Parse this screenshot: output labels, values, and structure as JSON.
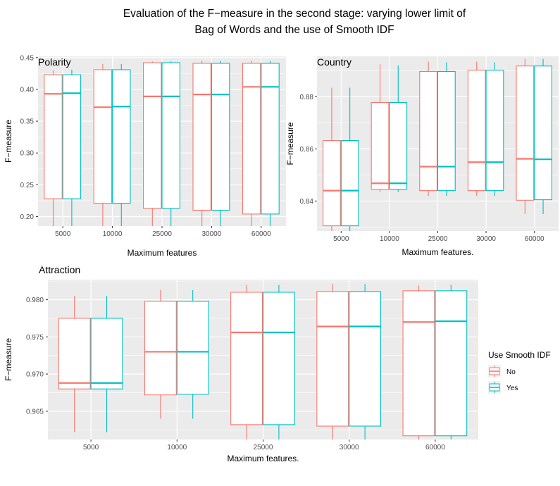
{
  "title_line1": "Evaluation of the F−measure in the second stage: varying lower limit of",
  "title_line2": "Bag of Words and the use of Smooth IDF",
  "colors": {
    "No": "#F8766D",
    "Yes": "#00BFC4",
    "panel_bg": "#EBEBEB",
    "grid": "#FFFFFF"
  },
  "legend": {
    "title": "Use Smooth IDF",
    "entries": [
      "No",
      "Yes"
    ],
    "placement": "right"
  },
  "chart_data": [
    {
      "type": "boxplot",
      "title": "Polarity",
      "xlabel": "Maximum features",
      "ylabel": "F−measure",
      "categories": [
        "5000",
        "10000",
        "25000",
        "30000",
        "60000"
      ],
      "ylim": [
        0.185,
        0.452
      ],
      "yticks": [
        0.2,
        0.25,
        0.3,
        0.35,
        0.4,
        0.45
      ],
      "ytick_labels": [
        "0.20",
        "0.25",
        "0.30",
        "0.35",
        "0.40",
        "0.45"
      ],
      "series": [
        {
          "name": "No",
          "boxes": [
            {
              "min": 0.18,
              "q1": 0.228,
              "median": 0.393,
              "q3": 0.423,
              "max": 0.43
            },
            {
              "min": 0.18,
              "q1": 0.221,
              "median": 0.372,
              "q3": 0.431,
              "max": 0.44
            },
            {
              "min": 0.18,
              "q1": 0.213,
              "median": 0.389,
              "q3": 0.442,
              "max": 0.444
            },
            {
              "min": 0.18,
              "q1": 0.21,
              "median": 0.392,
              "q3": 0.441,
              "max": 0.445
            },
            {
              "min": 0.18,
              "q1": 0.204,
              "median": 0.404,
              "q3": 0.441,
              "max": 0.445
            }
          ]
        },
        {
          "name": "Yes",
          "boxes": [
            {
              "min": 0.18,
              "q1": 0.228,
              "median": 0.394,
              "q3": 0.423,
              "max": 0.431
            },
            {
              "min": 0.18,
              "q1": 0.221,
              "median": 0.373,
              "q3": 0.431,
              "max": 0.44
            },
            {
              "min": 0.18,
              "q1": 0.213,
              "median": 0.389,
              "q3": 0.442,
              "max": 0.444
            },
            {
              "min": 0.18,
              "q1": 0.21,
              "median": 0.392,
              "q3": 0.441,
              "max": 0.445
            },
            {
              "min": 0.18,
              "q1": 0.204,
              "median": 0.404,
              "q3": 0.441,
              "max": 0.445
            }
          ]
        }
      ]
    },
    {
      "type": "boxplot",
      "title": "Country",
      "xlabel": "Maximum features.",
      "ylabel": "F−measure",
      "categories": [
        "5000",
        "10000",
        "25000",
        "30000",
        "60000"
      ],
      "ylim": [
        0.8285,
        0.8955
      ],
      "yticks": [
        0.84,
        0.86,
        0.88
      ],
      "ytick_labels": [
        "0.84",
        "0.86",
        "0.88"
      ],
      "series": [
        {
          "name": "No",
          "boxes": [
            {
              "min": 0.828,
              "q1": 0.8305,
              "median": 0.844,
              "q3": 0.8632,
              "max": 0.8835
            },
            {
              "min": 0.8435,
              "q1": 0.8445,
              "median": 0.8468,
              "q3": 0.8778,
              "max": 0.8925
            },
            {
              "min": 0.842,
              "q1": 0.844,
              "median": 0.8532,
              "q3": 0.8897,
              "max": 0.8935
            },
            {
              "min": 0.842,
              "q1": 0.844,
              "median": 0.8549,
              "q3": 0.8902,
              "max": 0.8935
            },
            {
              "min": 0.835,
              "q1": 0.8403,
              "median": 0.8562,
              "q3": 0.8918,
              "max": 0.8945
            }
          ]
        },
        {
          "name": "Yes",
          "boxes": [
            {
              "min": 0.828,
              "q1": 0.8305,
              "median": 0.844,
              "q3": 0.8632,
              "max": 0.8835
            },
            {
              "min": 0.8435,
              "q1": 0.8445,
              "median": 0.8468,
              "q3": 0.8778,
              "max": 0.892
            },
            {
              "min": 0.842,
              "q1": 0.844,
              "median": 0.8532,
              "q3": 0.8897,
              "max": 0.8932
            },
            {
              "min": 0.842,
              "q1": 0.844,
              "median": 0.8549,
              "q3": 0.8902,
              "max": 0.8932
            },
            {
              "min": 0.835,
              "q1": 0.8405,
              "median": 0.856,
              "q3": 0.8918,
              "max": 0.8945
            }
          ]
        }
      ]
    },
    {
      "type": "boxplot",
      "title": "Attraction",
      "xlabel": "Maximum features.",
      "ylabel": "F−measure",
      "categories": [
        "5000",
        "10000",
        "25000",
        "30000",
        "60000"
      ],
      "ylim": [
        0.9612,
        0.9827
      ],
      "yticks": [
        0.965,
        0.97,
        0.975,
        0.98
      ],
      "ytick_labels": [
        "0.965",
        "0.970",
        "0.975",
        "0.980"
      ],
      "series": [
        {
          "name": "No",
          "boxes": [
            {
              "min": 0.9622,
              "q1": 0.968,
              "median": 0.9688,
              "q3": 0.9775,
              "max": 0.9805
            },
            {
              "min": 0.964,
              "q1": 0.9672,
              "median": 0.973,
              "q3": 0.9798,
              "max": 0.9813
            },
            {
              "min": 0.961,
              "q1": 0.9632,
              "median": 0.9756,
              "q3": 0.981,
              "max": 0.982
            },
            {
              "min": 0.961,
              "q1": 0.963,
              "median": 0.9764,
              "q3": 0.9811,
              "max": 0.9821
            },
            {
              "min": 0.961,
              "q1": 0.9617,
              "median": 0.977,
              "q3": 0.9812,
              "max": 0.9819
            }
          ]
        },
        {
          "name": "Yes",
          "boxes": [
            {
              "min": 0.9622,
              "q1": 0.968,
              "median": 0.9688,
              "q3": 0.9775,
              "max": 0.9805
            },
            {
              "min": 0.964,
              "q1": 0.9673,
              "median": 0.973,
              "q3": 0.9798,
              "max": 0.9813
            },
            {
              "min": 0.961,
              "q1": 0.9632,
              "median": 0.9756,
              "q3": 0.981,
              "max": 0.982
            },
            {
              "min": 0.961,
              "q1": 0.963,
              "median": 0.9764,
              "q3": 0.9811,
              "max": 0.9821
            },
            {
              "min": 0.961,
              "q1": 0.9617,
              "median": 0.9771,
              "q3": 0.9812,
              "max": 0.982
            }
          ]
        }
      ]
    }
  ]
}
